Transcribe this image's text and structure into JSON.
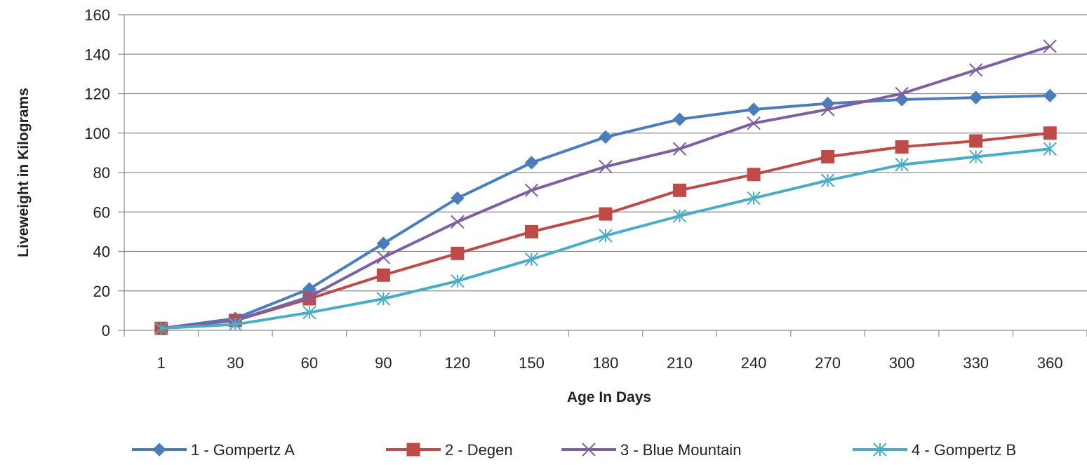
{
  "chart_data": {
    "type": "line",
    "title": "",
    "xlabel": "Age In Days",
    "ylabel": "Liveweight in Kilograms",
    "categories": [
      "1",
      "30",
      "60",
      "90",
      "120",
      "150",
      "180",
      "210",
      "240",
      "270",
      "300",
      "330",
      "360"
    ],
    "ylim": [
      0,
      160
    ],
    "yticks": [
      0,
      20,
      40,
      60,
      80,
      100,
      120,
      140,
      160
    ],
    "grid": true,
    "legend_position": "bottom",
    "series": [
      {
        "name": "1 - Gompertz A",
        "color": "#4a7ebb",
        "marker": "diamond",
        "values": [
          1,
          6,
          21,
          44,
          67,
          85,
          98,
          107,
          112,
          115,
          117,
          118,
          119
        ]
      },
      {
        "name": "2 - Degen",
        "color": "#be4b48",
        "marker": "square",
        "values": [
          1,
          5,
          16,
          28,
          39,
          50,
          59,
          71,
          79,
          88,
          93,
          96,
          100
        ]
      },
      {
        "name": "3 - Blue Mountain",
        "color": "#7d60a0",
        "marker": "x",
        "values": [
          1,
          5,
          17,
          37,
          55,
          71,
          83,
          92,
          105,
          112,
          120,
          132,
          144
        ]
      },
      {
        "name": "4 - Gompertz B",
        "color": "#4aacc6",
        "marker": "star",
        "values": [
          1,
          3,
          9,
          16,
          25,
          36,
          48,
          58,
          67,
          76,
          84,
          88,
          92
        ]
      }
    ]
  }
}
